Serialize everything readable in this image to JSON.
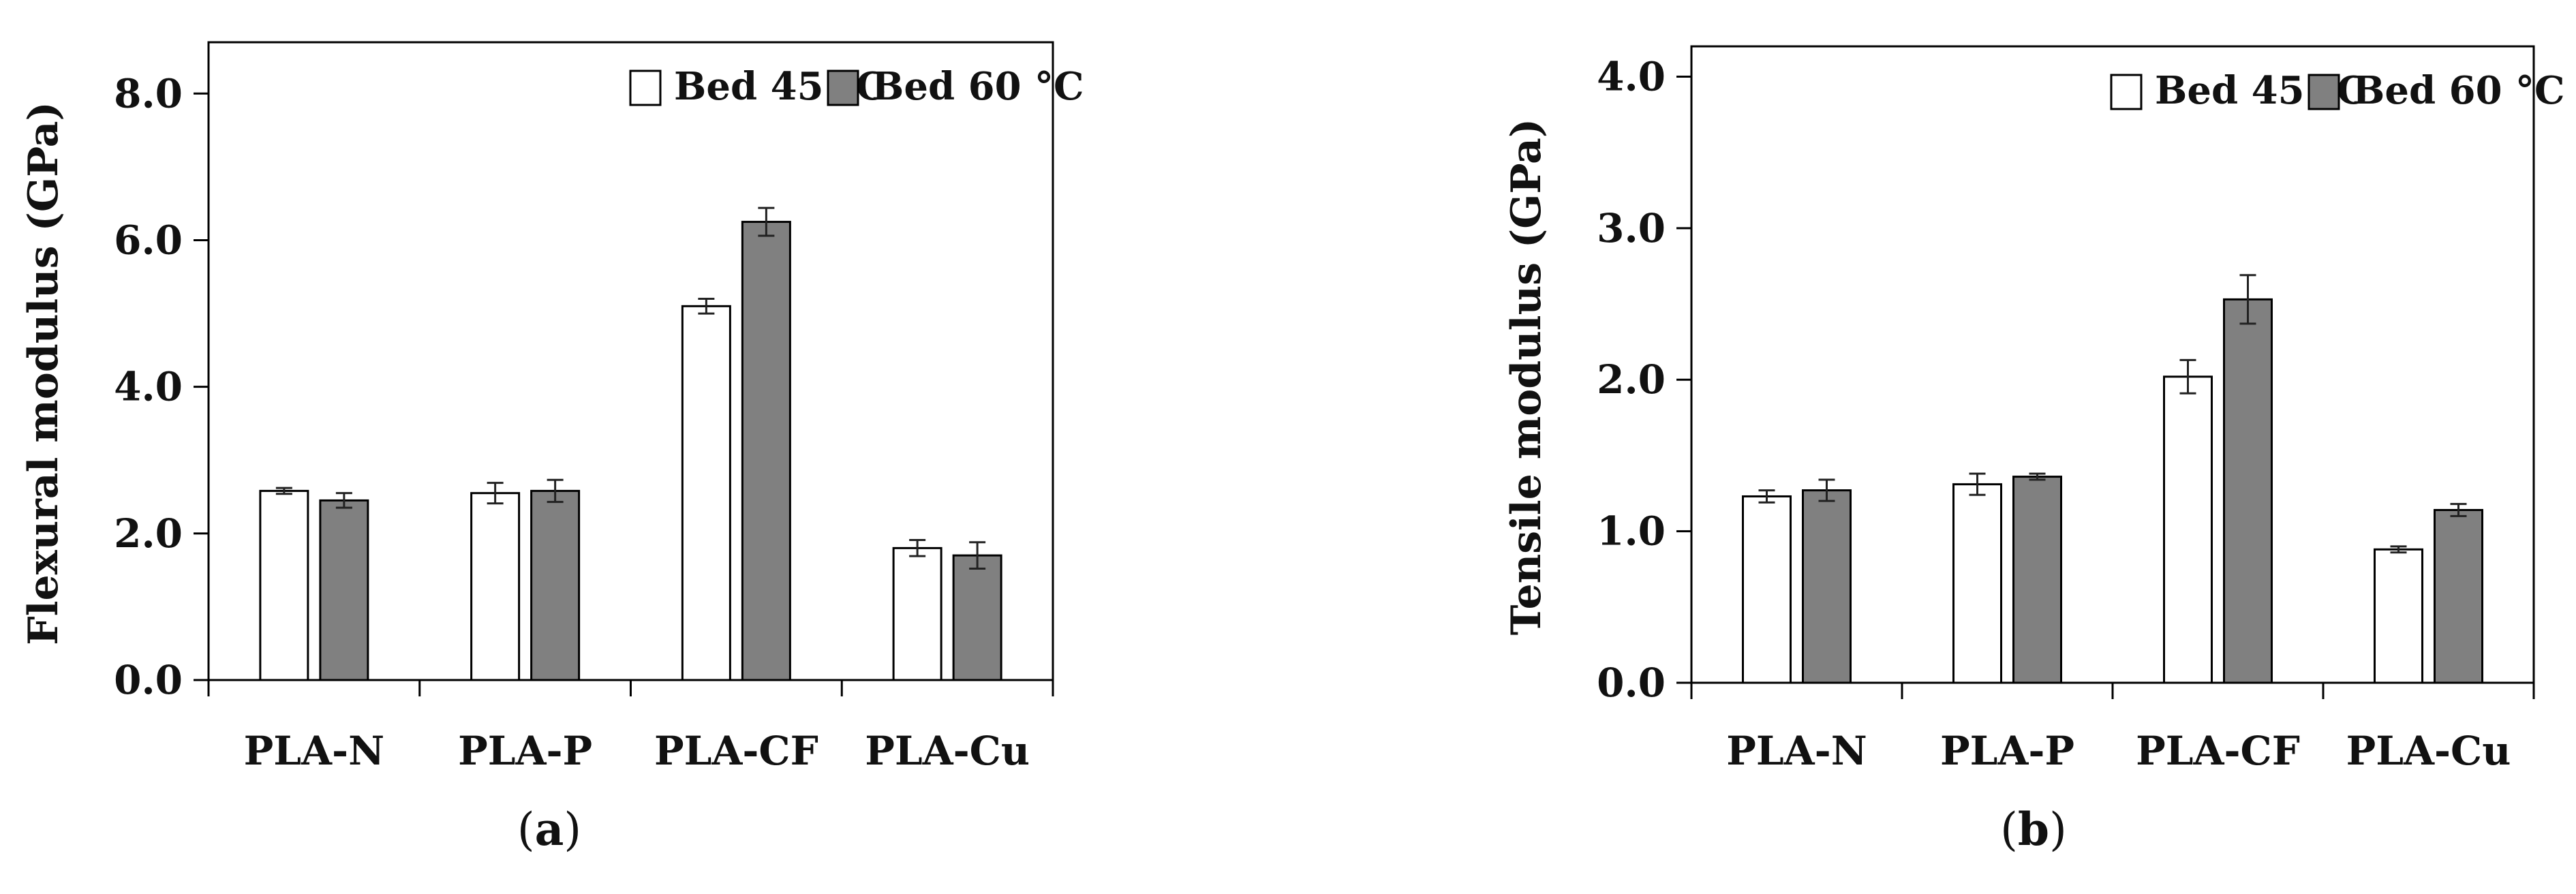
{
  "chart_data": [
    {
      "type": "bar",
      "panel_label": "a",
      "title": "",
      "xlabel": "",
      "ylabel": "Flexural modulus (GPa)",
      "ylim": [
        0,
        8.7
      ],
      "yticks": [
        0,
        2,
        4,
        6,
        8
      ],
      "ytick_labels": [
        "0.0",
        "2.0",
        "4.0",
        "6.0",
        "8.0"
      ],
      "categories": [
        "PLA-N",
        "PLA-P",
        "PLA-CF",
        "PLA-Cu"
      ],
      "legend_position": "top-right",
      "series": [
        {
          "name": "Bed 45 °C",
          "color": "#ffffff",
          "values": [
            2.58,
            2.55,
            5.1,
            1.8
          ],
          "errors": [
            0.04,
            0.14,
            0.1,
            0.11
          ]
        },
        {
          "name": "Bed 60 °C",
          "color": "#808080",
          "values": [
            2.45,
            2.58,
            6.25,
            1.7
          ],
          "errors": [
            0.1,
            0.15,
            0.19,
            0.18
          ]
        }
      ]
    },
    {
      "type": "bar",
      "panel_label": "b",
      "title": "",
      "xlabel": "",
      "ylabel": "Tensile modulus (GPa)",
      "ylim": [
        0,
        4.2
      ],
      "yticks": [
        0,
        1,
        2,
        3,
        4
      ],
      "ytick_labels": [
        "0.0",
        "1.0",
        "2.0",
        "3.0",
        "4.0"
      ],
      "categories": [
        "PLA-N",
        "PLA-P",
        "PLA-CF",
        "PLA-Cu"
      ],
      "legend_position": "top-right",
      "series": [
        {
          "name": "Bed 45 °C",
          "color": "#ffffff",
          "values": [
            1.23,
            1.31,
            2.02,
            0.88
          ],
          "errors": [
            0.04,
            0.07,
            0.11,
            0.02
          ]
        },
        {
          "name": "Bed 60 °C",
          "color": "#808080",
          "values": [
            1.27,
            1.36,
            2.53,
            1.14
          ],
          "errors": [
            0.07,
            0.02,
            0.16,
            0.04
          ]
        }
      ]
    }
  ]
}
